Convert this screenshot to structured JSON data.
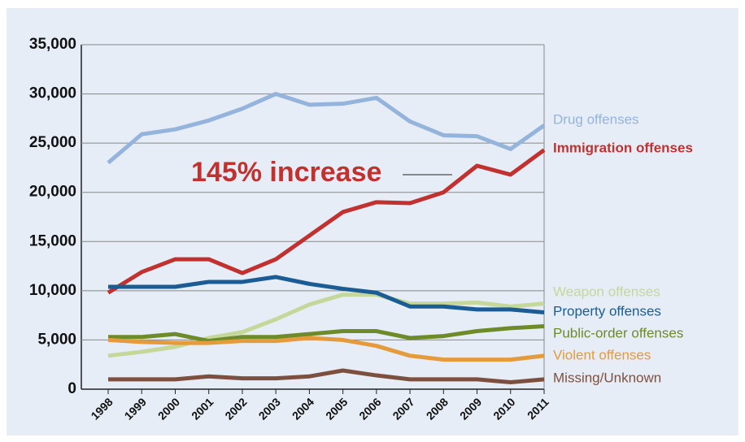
{
  "chart_data": {
    "type": "line",
    "annotation": "145% increase",
    "categories": [
      "1998",
      "1999",
      "2000",
      "2001",
      "2002",
      "2003",
      "2004",
      "2005",
      "2006",
      "2007",
      "2008",
      "2009",
      "2010",
      "2011"
    ],
    "ylim": [
      0,
      35000
    ],
    "yticks": [
      0,
      {
        "value": 5000,
        "label": "5,000"
      },
      {
        "value": 10000,
        "label": "10,000"
      },
      {
        "value": 15000,
        "label": "15,000"
      },
      {
        "value": 20000,
        "label": "20,000"
      },
      {
        "value": 25000,
        "label": "25,000"
      },
      {
        "value": 30000,
        "label": "30,000"
      },
      {
        "value": 35000,
        "label": "35,000"
      }
    ],
    "grid": true,
    "series": [
      {
        "name": "Drug offenses",
        "color": "#94b4dc",
        "values": [
          23000,
          25900,
          26400,
          27300,
          28500,
          30000,
          28900,
          29000,
          29600,
          27200,
          25800,
          25700,
          24400,
          26800
        ]
      },
      {
        "name": "Immigration offenses",
        "color": "#c0312f",
        "values": [
          9800,
          11900,
          13200,
          13200,
          11800,
          13200,
          15600,
          18000,
          19000,
          18900,
          20000,
          22700,
          21800,
          24300
        ]
      },
      {
        "name": "Weapon offenses",
        "color": "#c5d89a",
        "values": [
          3400,
          3800,
          4300,
          5200,
          5800,
          7100,
          8600,
          9600,
          9600,
          8700,
          8700,
          8800,
          8400,
          8700
        ]
      },
      {
        "name": "Property offenses",
        "color": "#1a5c93",
        "values": [
          10400,
          10400,
          10400,
          10900,
          10900,
          11400,
          10700,
          10200,
          9800,
          8400,
          8400,
          8100,
          8100,
          7800
        ]
      },
      {
        "name": "Public-order offenses",
        "color": "#6d8b28",
        "values": [
          5300,
          5300,
          5600,
          4900,
          5300,
          5300,
          5600,
          5900,
          5900,
          5200,
          5400,
          5900,
          6200,
          6400
        ]
      },
      {
        "name": "Violent offenses",
        "color": "#e59a3c",
        "values": [
          5000,
          4800,
          4700,
          4700,
          4900,
          4900,
          5200,
          5000,
          4400,
          3400,
          3000,
          3000,
          3000,
          3400
        ]
      },
      {
        "name": "Missing/Unknown",
        "color": "#7d4f3f",
        "values": [
          1000,
          1000,
          1000,
          1300,
          1100,
          1100,
          1300,
          1900,
          1400,
          1000,
          1000,
          1000,
          700,
          1000
        ]
      }
    ]
  }
}
